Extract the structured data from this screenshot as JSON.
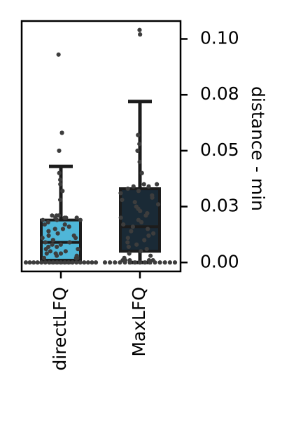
{
  "chart_data": {
    "type": "box",
    "categories": [
      "directLFQ",
      "MaxLFQ"
    ],
    "ylabel": "distance - min",
    "xlabel": "",
    "title": "",
    "ylim": [
      -0.004,
      0.108
    ],
    "y_ticks": [
      {
        "value": 0.0,
        "label": "0.00"
      },
      {
        "value": 0.025,
        "label": "0.03"
      },
      {
        "value": 0.05,
        "label": "0.05"
      },
      {
        "value": 0.075,
        "label": "0.08"
      },
      {
        "value": 0.1,
        "label": "0.10"
      }
    ],
    "grid": false,
    "y_axis_side": "right",
    "series": [
      {
        "category": "directLFQ",
        "box_color": "#4fb6d8",
        "q1": 0.001,
        "median": 0.009,
        "q3": 0.019,
        "whisker_low": 0.0,
        "whisker_high": 0.043,
        "points": [
          0.0,
          0.0,
          0.0,
          0.0,
          0.0,
          0.0,
          0.0,
          0.0,
          0.0,
          0.0,
          0.0,
          0.0,
          0.0,
          0.0,
          0.0,
          0.0,
          0.0,
          0.0,
          0.0,
          0.002,
          0.002,
          0.002,
          0.003,
          0.003,
          0.004,
          0.004,
          0.004,
          0.005,
          0.005,
          0.006,
          0.006,
          0.007,
          0.007,
          0.008,
          0.008,
          0.009,
          0.009,
          0.01,
          0.01,
          0.011,
          0.011,
          0.012,
          0.012,
          0.013,
          0.014,
          0.015,
          0.015,
          0.016,
          0.017,
          0.017,
          0.018,
          0.019,
          0.019,
          0.019,
          0.02,
          0.02,
          0.02,
          0.02,
          0.021,
          0.021,
          0.021,
          0.028,
          0.032,
          0.035,
          0.037,
          0.04,
          0.05,
          0.058,
          0.093
        ]
      },
      {
        "category": "MaxLFQ",
        "box_color": "#1a2a36",
        "q1": 0.005,
        "median": 0.016,
        "q3": 0.033,
        "whisker_low": 0.0,
        "whisker_high": 0.072,
        "points": [
          0.0,
          0.0,
          0.0,
          0.0,
          0.0,
          0.0,
          0.0,
          0.0,
          0.0,
          0.0,
          0.0,
          0.0,
          0.0,
          0.0,
          0.0,
          0.001,
          0.001,
          0.001,
          0.001,
          0.001,
          0.002,
          0.003,
          0.004,
          0.005,
          0.006,
          0.007,
          0.008,
          0.009,
          0.01,
          0.011,
          0.012,
          0.013,
          0.014,
          0.015,
          0.016,
          0.017,
          0.018,
          0.019,
          0.02,
          0.021,
          0.022,
          0.023,
          0.024,
          0.025,
          0.026,
          0.027,
          0.028,
          0.029,
          0.03,
          0.031,
          0.032,
          0.033,
          0.034,
          0.034,
          0.035,
          0.035,
          0.04,
          0.045,
          0.05,
          0.053,
          0.057,
          0.102,
          0.104
        ]
      }
    ]
  }
}
